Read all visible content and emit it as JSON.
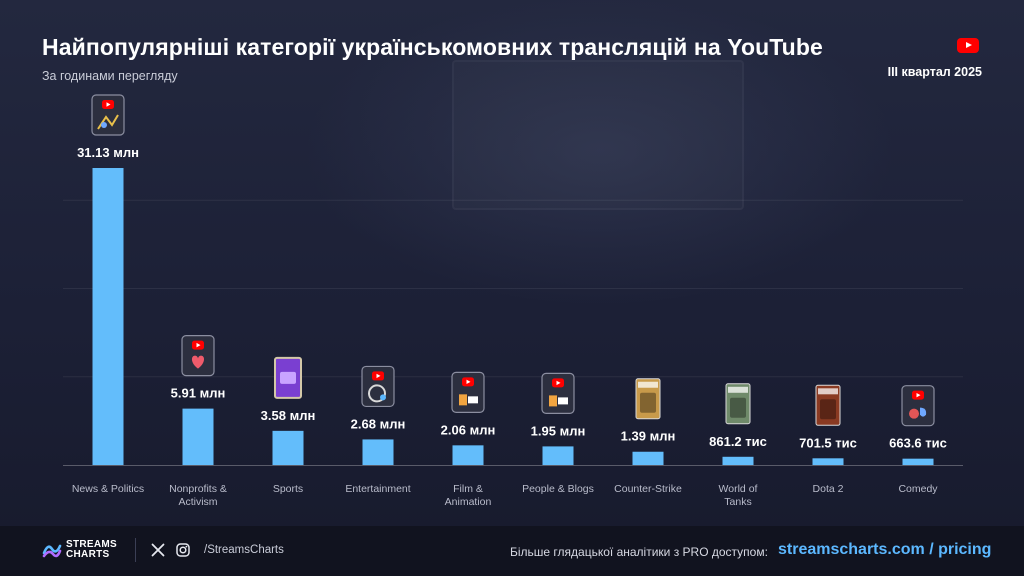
{
  "header": {
    "title": "Найпопулярніші категорії українськомовних трансляцій на YouTube",
    "subtitle": "За годинами перегляду",
    "period": "III квартал 2025"
  },
  "colors": {
    "bar": "#63bdfb",
    "accent_link": "#5cb8ff",
    "youtube_red": "#ff0000"
  },
  "chart_data": {
    "type": "bar",
    "title": "Найпопулярніші категорії українськомовних трансляцій на YouTube",
    "subtitle": "За годинами перегляду",
    "ylabel": "",
    "xlabel": "",
    "unit": "hours watched",
    "ylim": [
      0,
      37000000
    ],
    "grid": true,
    "categories": [
      "News & Politics",
      "Nonprofits & Activism",
      "Sports",
      "Entertainment",
      "Film & Animation",
      "People & Blogs",
      "Counter-Strike",
      "World of Tanks",
      "Dota 2",
      "Comedy"
    ],
    "values": [
      31130000,
      5910000,
      3580000,
      2680000,
      2060000,
      1950000,
      1390000,
      861200,
      701500,
      663600
    ],
    "value_labels": [
      "31.13 млн",
      "5.91 млн",
      "3.58 млн",
      "2.68 млн",
      "2.06 млн",
      "1.95 млн",
      "1.39 млн",
      "861.2 тис",
      "701.5 тис",
      "663.6 тис"
    ],
    "category_icons": [
      "news-politics-icon",
      "nonprofits-heart-icon",
      "sports-icon",
      "entertainment-icon",
      "film-animation-icon",
      "people-blogs-icon",
      "counter-strike-cover-icon",
      "world-of-tanks-cover-icon",
      "dota-2-cover-icon",
      "comedy-icon"
    ]
  },
  "footer": {
    "logo_line1": "STREAMS",
    "logo_line2": "CHARTS",
    "social_icons": [
      "x-icon",
      "instagram-icon"
    ],
    "handle": "/StreamsCharts",
    "promo_text": "Більше глядацької аналітики з PRO доступом:",
    "promo_link": "streamscharts.com / pricing"
  }
}
